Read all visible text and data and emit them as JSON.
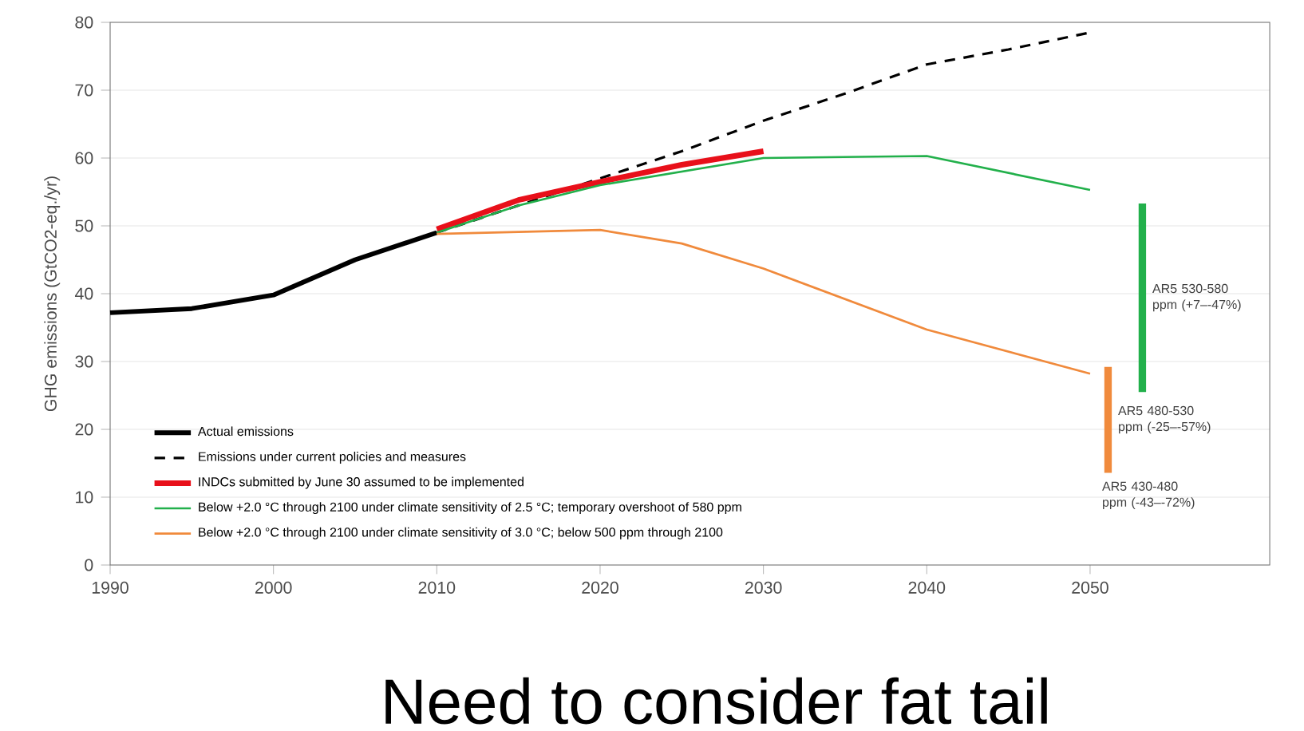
{
  "chart_data": {
    "type": "line",
    "ylabel": "GHG emissions (GtCO2-eq./yr)",
    "xlim": [
      1990,
      2061
    ],
    "xticks": [
      1990,
      2000,
      2010,
      2020,
      2030,
      2040,
      2050
    ],
    "ylim": [
      0,
      80
    ],
    "yticks": [
      0,
      10,
      20,
      30,
      40,
      50,
      60,
      70,
      80
    ],
    "grid": "y",
    "legend": "bottom left",
    "marker": "none",
    "series": [
      {
        "name": "Actual emissions",
        "color": "#000000",
        "x": [
          1990,
          1995,
          2000,
          2005,
          2010
        ],
        "values": [
          37.2,
          37.8,
          39.8,
          45,
          49
        ]
      },
      {
        "name": "Emissions under current policies and measures",
        "color": "#000000",
        "line_style": "dashed",
        "x": [
          2010,
          2015,
          2020,
          2025,
          2030,
          2035,
          2040,
          2045,
          2050
        ],
        "values": [
          49,
          53,
          57,
          61,
          65.5,
          69.5,
          73.8,
          76,
          78.5
        ]
      },
      {
        "name": "INDCs submitted by June 30 assumed to be implemented",
        "color": "#e8101a",
        "x": [
          2010,
          2015,
          2020,
          2025,
          2030
        ],
        "values": [
          49.5,
          53.8,
          56.5,
          59,
          61
        ]
      },
      {
        "name": "Below +2.0 °C through 2100 under climate sensitivity of 2.5 °C; temporary overshoot of 580 ppm",
        "color": "#22b04b",
        "x": [
          2010,
          2015,
          2020,
          2030,
          2040,
          2050
        ],
        "values": [
          49,
          53,
          56,
          60,
          60.3,
          55.3
        ]
      },
      {
        "name": "Below +2.0 °C through 2100 under climate sensitivity of 3.0 °C; below 500 ppm through 2100",
        "color": "#f08a3c",
        "x": [
          2010,
          2020,
          2025,
          2030,
          2040,
          2050
        ],
        "values": [
          48.8,
          49.4,
          47.4,
          43.7,
          34.7,
          28.2
        ]
      },
      {
        "color": "#22b04b",
        "x": [
          2053.2,
          2053.2
        ],
        "values": [
          25.5,
          53.3
        ]
      },
      {
        "color": "#f08a3c",
        "x": [
          2051.1,
          2051.1
        ],
        "values": [
          13.6,
          29.2
        ]
      }
    ],
    "annotations": [
      "AR5 530-580 ppm (+7–-47%)",
      "AR5 480-530 ppm (-25–-57%)",
      "AR5 430-480 ppm (-43–-72%)",
      "Need to consider fat tail"
    ]
  }
}
